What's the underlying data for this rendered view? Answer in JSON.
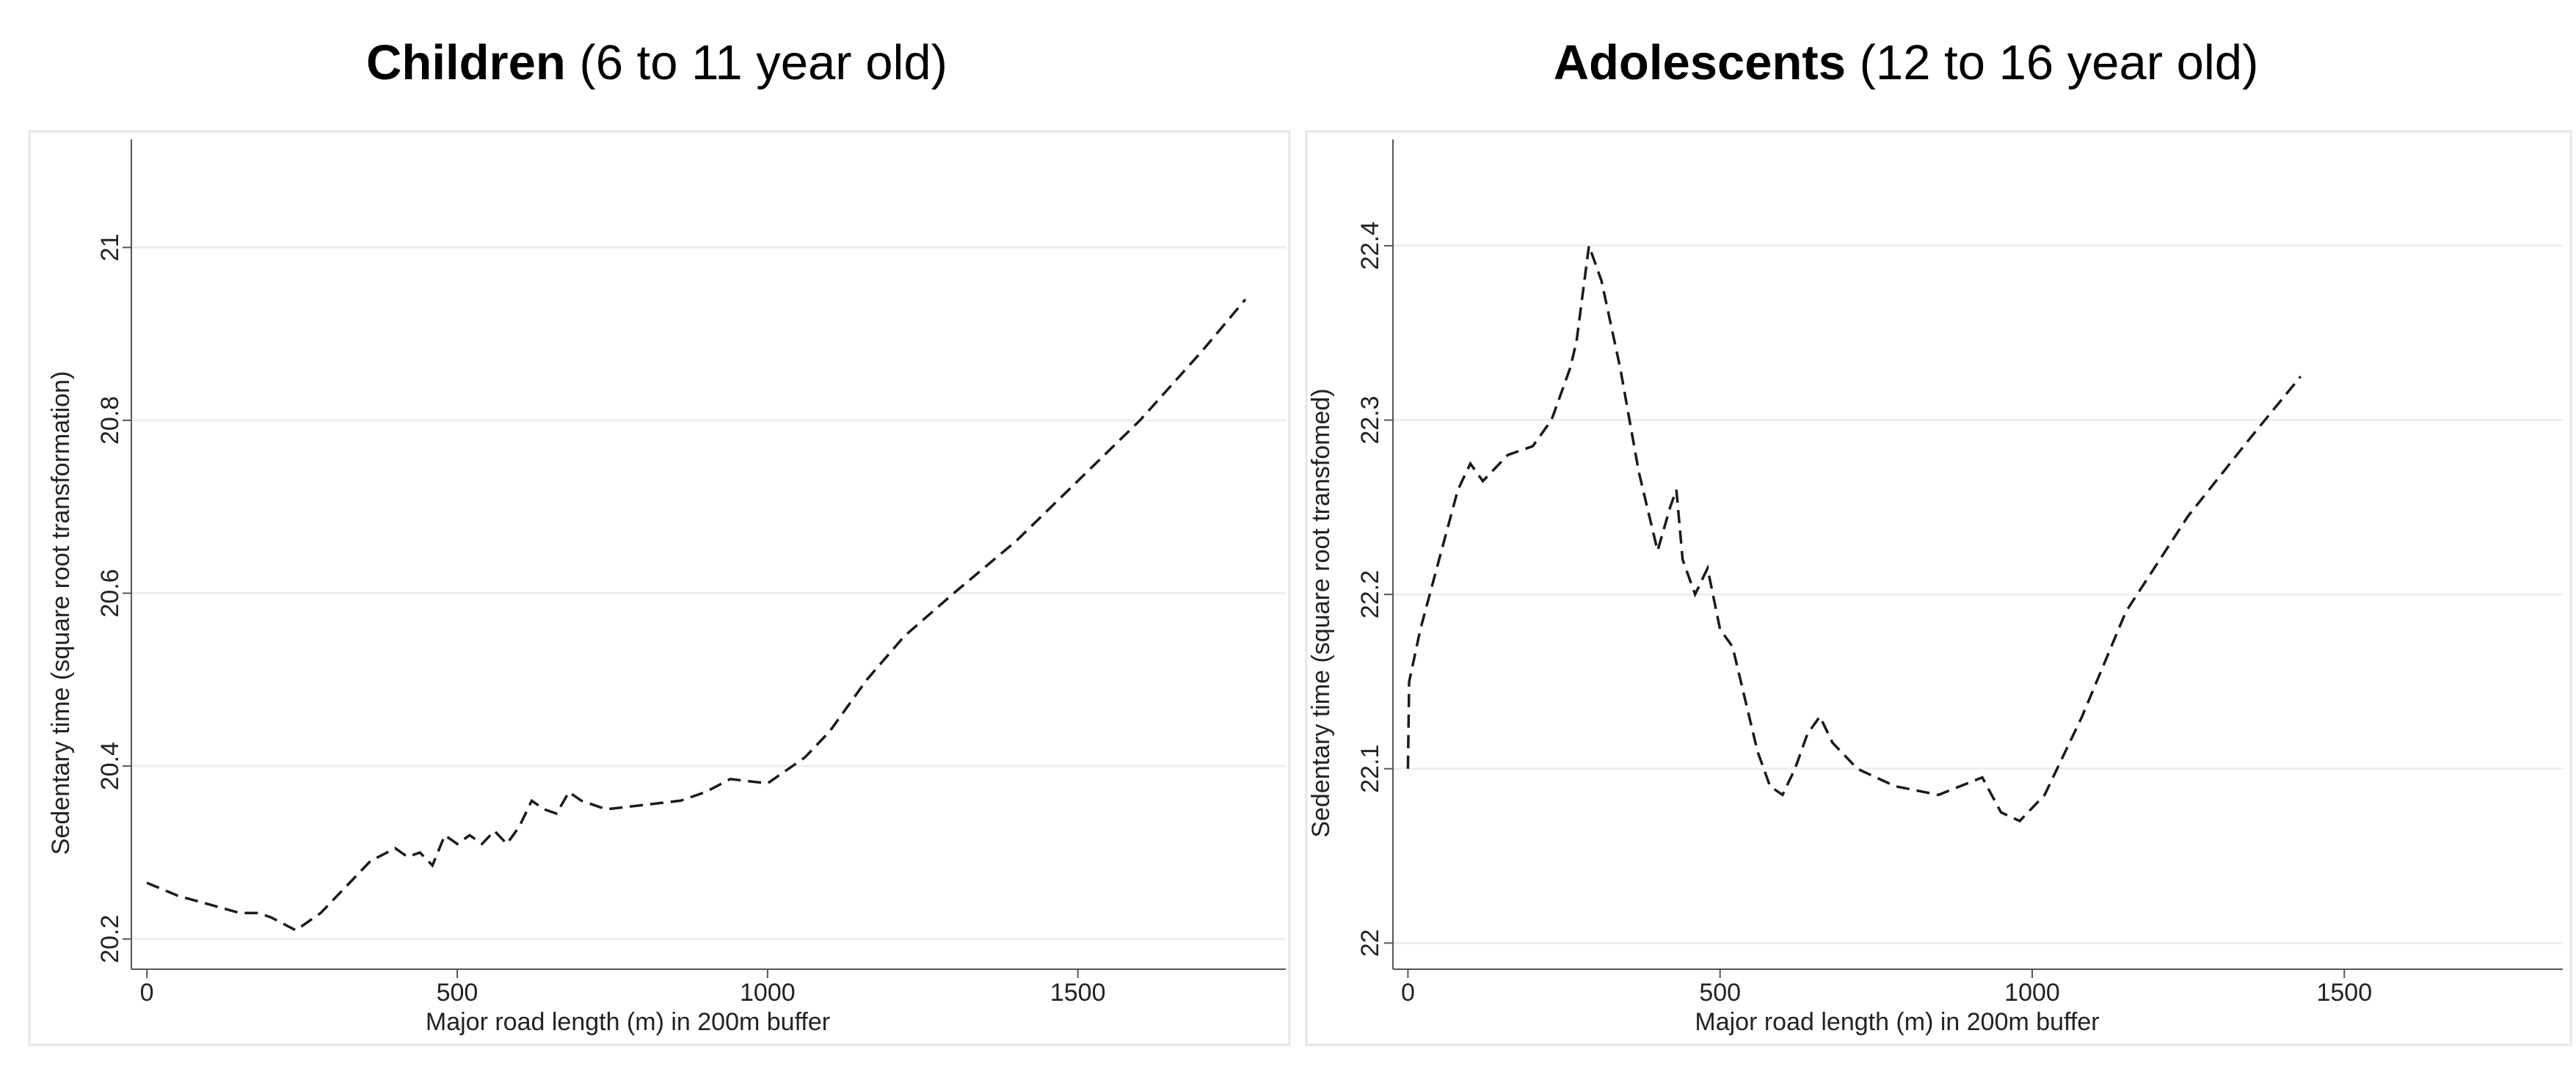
{
  "chart_data": [
    {
      "type": "line",
      "title_bold": "Children",
      "title": "(6 to 11 year old)",
      "x_label": "Major road length (m) in 200m buffer",
      "y_label": "Sedentary time (square root transformation)",
      "x": [
        0,
        50,
        100,
        150,
        180,
        200,
        240,
        280,
        320,
        360,
        400,
        420,
        440,
        460,
        480,
        500,
        520,
        540,
        560,
        580,
        600,
        620,
        640,
        660,
        680,
        700,
        740,
        800,
        860,
        900,
        940,
        1000,
        1060,
        1100,
        1160,
        1220,
        1300,
        1400,
        1500,
        1600,
        1700,
        1770
      ],
      "values": [
        20.265,
        20.25,
        20.24,
        20.23,
        20.23,
        20.225,
        20.21,
        20.23,
        20.26,
        20.29,
        20.305,
        20.295,
        20.3,
        20.285,
        20.32,
        20.31,
        20.32,
        20.31,
        20.325,
        20.31,
        20.33,
        20.36,
        20.35,
        20.345,
        20.37,
        20.36,
        20.35,
        20.355,
        20.36,
        20.37,
        20.385,
        20.38,
        20.41,
        20.44,
        20.5,
        20.55,
        20.6,
        20.66,
        20.73,
        20.8,
        20.88,
        20.94
      ],
      "color": "#1a1a1a",
      "line_style": "dashed",
      "grid": true,
      "xlim": [
        -25,
        1835
      ],
      "xticks": [
        0,
        500,
        1000,
        1500
      ],
      "ylim": [
        20.165,
        21.125
      ],
      "yticks": [
        20.2,
        20.4,
        20.6,
        20.8,
        21
      ]
    },
    {
      "type": "line",
      "title_bold": "Adolescents",
      "title": "(12 to 16 year old)",
      "x_label": "Major road length (m) in 200m buffer",
      "y_label": "Sedentary time (square root transfomed)",
      "x": [
        0,
        2,
        20,
        50,
        80,
        100,
        120,
        160,
        200,
        230,
        260,
        270,
        290,
        310,
        340,
        370,
        400,
        420,
        430,
        440,
        460,
        480,
        500,
        520,
        540,
        560,
        580,
        600,
        620,
        640,
        660,
        680,
        720,
        780,
        850,
        920,
        950,
        980,
        1020,
        1080,
        1150,
        1250,
        1350,
        1430
      ],
      "values": [
        22.1,
        22.15,
        22.18,
        22.22,
        22.26,
        22.275,
        22.265,
        22.28,
        22.285,
        22.3,
        22.33,
        22.345,
        22.4,
        22.38,
        22.33,
        22.27,
        22.225,
        22.25,
        22.26,
        22.22,
        22.2,
        22.215,
        22.18,
        22.17,
        22.14,
        22.11,
        22.09,
        22.085,
        22.1,
        22.12,
        22.13,
        22.115,
        22.1,
        22.09,
        22.085,
        22.095,
        22.075,
        22.07,
        22.085,
        22.13,
        22.19,
        22.245,
        22.29,
        22.325
      ],
      "color": "#1a1a1a",
      "line_style": "dashed",
      "grid": true,
      "xlim": [
        -24,
        1850
      ],
      "xticks": [
        0,
        500,
        1000,
        1500
      ],
      "ylim": [
        21.985,
        22.461
      ],
      "yticks": [
        22,
        22.1,
        22.2,
        22.3,
        22.4
      ]
    }
  ]
}
